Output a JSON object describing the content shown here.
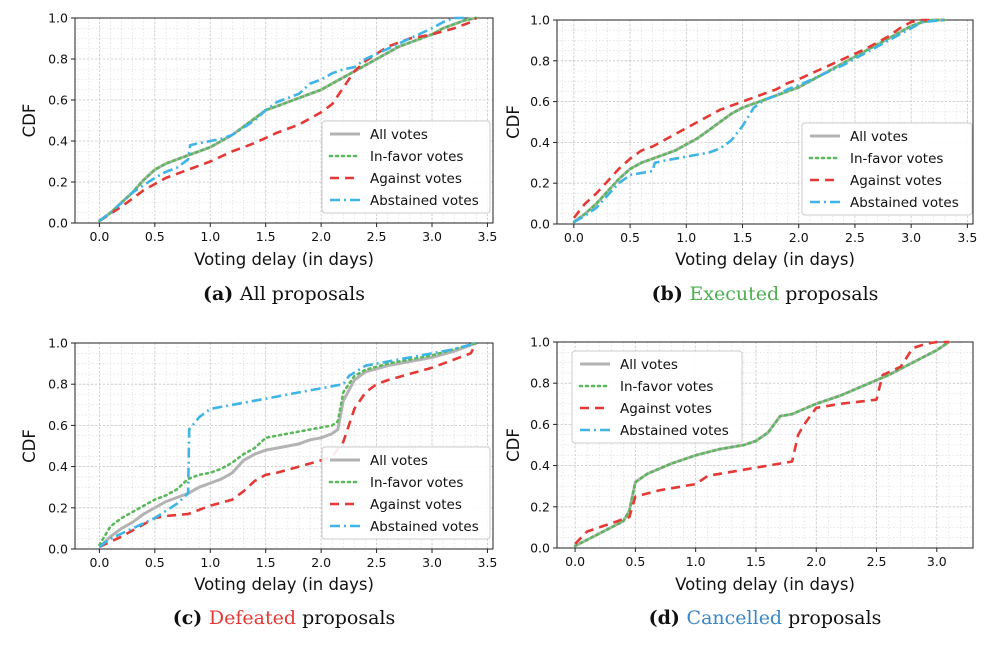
{
  "colors": {
    "all": "#b3b3b3",
    "in_favor": "#5cb85c",
    "against": "#e53935",
    "abstained": "#3fb4e6",
    "executed_word": "#4caf50",
    "defeated_word": "#e53935",
    "cancelled_word": "#3a87c8"
  },
  "chart_data": [
    {
      "type": "line",
      "panel": "a",
      "caption": {
        "label": "(a)",
        "text": "All proposals"
      },
      "xlabel": "Voting delay (in days)",
      "ylabel": "CDF",
      "xlim": [
        -0.22,
        3.55
      ],
      "ylim": [
        0,
        1.0
      ],
      "xticks": [
        "0.0",
        "0.5",
        "1.0",
        "1.5",
        "2.0",
        "2.5",
        "3.0",
        "3.5"
      ],
      "yticks": [
        "0.0",
        "0.2",
        "0.4",
        "0.6",
        "0.8",
        "1.0"
      ],
      "legend_position": "lower-right",
      "series": [
        {
          "name": "All votes",
          "key": "all",
          "x": [
            0.0,
            0.1,
            0.2,
            0.3,
            0.4,
            0.5,
            0.6,
            0.7,
            0.8,
            0.9,
            1.0,
            1.1,
            1.2,
            1.3,
            1.4,
            1.5,
            1.6,
            1.7,
            1.8,
            1.9,
            2.0,
            2.1,
            2.2,
            2.3,
            2.4,
            2.5,
            2.6,
            2.7,
            2.8,
            2.9,
            3.0,
            3.1,
            3.2,
            3.3,
            3.4
          ],
          "y": [
            0.01,
            0.05,
            0.1,
            0.15,
            0.21,
            0.26,
            0.29,
            0.31,
            0.33,
            0.35,
            0.37,
            0.4,
            0.43,
            0.47,
            0.51,
            0.55,
            0.57,
            0.59,
            0.61,
            0.63,
            0.65,
            0.68,
            0.71,
            0.74,
            0.77,
            0.8,
            0.83,
            0.86,
            0.88,
            0.9,
            0.92,
            0.95,
            0.97,
            0.99,
            1.0
          ]
        },
        {
          "name": "In-favor votes",
          "key": "in_favor",
          "x": [
            0.0,
            0.1,
            0.2,
            0.3,
            0.4,
            0.5,
            0.6,
            0.7,
            0.8,
            0.9,
            1.0,
            1.1,
            1.2,
            1.3,
            1.4,
            1.5,
            1.6,
            1.7,
            1.8,
            1.9,
            2.0,
            2.1,
            2.2,
            2.3,
            2.4,
            2.5,
            2.6,
            2.7,
            2.8,
            2.9,
            3.0,
            3.1,
            3.2,
            3.3,
            3.4
          ],
          "y": [
            0.01,
            0.05,
            0.1,
            0.15,
            0.21,
            0.26,
            0.29,
            0.31,
            0.33,
            0.35,
            0.37,
            0.4,
            0.43,
            0.47,
            0.51,
            0.55,
            0.57,
            0.59,
            0.61,
            0.63,
            0.65,
            0.68,
            0.71,
            0.74,
            0.77,
            0.8,
            0.83,
            0.86,
            0.88,
            0.9,
            0.92,
            0.95,
            0.97,
            0.99,
            1.0
          ]
        },
        {
          "name": "Against votes",
          "key": "against",
          "x": [
            0.0,
            0.2,
            0.4,
            0.6,
            0.8,
            1.0,
            1.2,
            1.4,
            1.6,
            1.8,
            2.0,
            2.1,
            2.2,
            2.3,
            2.4,
            2.6,
            2.8,
            3.0,
            3.2,
            3.35,
            3.4
          ],
          "y": [
            0.01,
            0.08,
            0.16,
            0.22,
            0.26,
            0.3,
            0.35,
            0.39,
            0.44,
            0.48,
            0.54,
            0.58,
            0.66,
            0.74,
            0.79,
            0.86,
            0.9,
            0.92,
            0.95,
            0.98,
            1.0
          ]
        },
        {
          "name": "Abstained votes",
          "key": "abstained",
          "x": [
            0.0,
            0.1,
            0.3,
            0.5,
            0.6,
            0.7,
            0.8,
            0.82,
            0.9,
            1.0,
            1.1,
            1.2,
            1.4,
            1.5,
            1.6,
            1.8,
            1.9,
            2.0,
            2.1,
            2.2,
            2.3,
            2.4,
            2.6,
            2.8,
            3.0,
            3.1,
            3.2,
            3.3
          ],
          "y": [
            0.01,
            0.05,
            0.15,
            0.22,
            0.25,
            0.27,
            0.31,
            0.38,
            0.39,
            0.4,
            0.41,
            0.43,
            0.5,
            0.55,
            0.59,
            0.63,
            0.68,
            0.7,
            0.73,
            0.75,
            0.76,
            0.8,
            0.85,
            0.9,
            0.95,
            0.98,
            1.0,
            1.0
          ]
        }
      ]
    },
    {
      "type": "line",
      "panel": "b",
      "caption": {
        "label": "(b)",
        "highlight": "Executed",
        "text": " proposals",
        "highlight_color_key": "executed_word"
      },
      "xlabel": "Voting delay (in days)",
      "ylabel": "CDF",
      "xlim": [
        -0.15,
        3.55
      ],
      "ylim": [
        0,
        1.0
      ],
      "xticks": [
        "0.0",
        "0.5",
        "1.0",
        "1.5",
        "2.0",
        "2.5",
        "3.0",
        "3.5"
      ],
      "yticks": [
        "0.0",
        "0.2",
        "0.4",
        "0.6",
        "0.8",
        "1.0"
      ],
      "legend_position": "lower-right",
      "series": [
        {
          "name": "All votes",
          "key": "all",
          "x": [
            0.0,
            0.1,
            0.2,
            0.3,
            0.4,
            0.5,
            0.6,
            0.7,
            0.8,
            0.9,
            1.0,
            1.1,
            1.2,
            1.3,
            1.4,
            1.5,
            1.6,
            1.7,
            1.8,
            1.9,
            2.0,
            2.1,
            2.2,
            2.3,
            2.4,
            2.5,
            2.6,
            2.7,
            2.8,
            2.9,
            3.0,
            3.1,
            3.2,
            3.3
          ],
          "y": [
            0.01,
            0.05,
            0.1,
            0.16,
            0.22,
            0.27,
            0.3,
            0.32,
            0.34,
            0.36,
            0.39,
            0.42,
            0.46,
            0.5,
            0.54,
            0.57,
            0.59,
            0.61,
            0.63,
            0.65,
            0.67,
            0.7,
            0.73,
            0.76,
            0.79,
            0.82,
            0.85,
            0.88,
            0.91,
            0.94,
            0.97,
            0.99,
            1.0,
            1.0
          ]
        },
        {
          "name": "In-favor votes",
          "key": "in_favor",
          "x": [
            0.0,
            0.1,
            0.2,
            0.3,
            0.4,
            0.5,
            0.6,
            0.7,
            0.8,
            0.9,
            1.0,
            1.1,
            1.2,
            1.3,
            1.4,
            1.5,
            1.6,
            1.7,
            1.8,
            1.9,
            2.0,
            2.1,
            2.2,
            2.3,
            2.4,
            2.5,
            2.6,
            2.7,
            2.8,
            2.9,
            3.0,
            3.1,
            3.2,
            3.3
          ],
          "y": [
            0.01,
            0.05,
            0.1,
            0.16,
            0.22,
            0.27,
            0.3,
            0.32,
            0.34,
            0.36,
            0.39,
            0.42,
            0.46,
            0.5,
            0.54,
            0.57,
            0.59,
            0.61,
            0.63,
            0.65,
            0.67,
            0.7,
            0.73,
            0.76,
            0.79,
            0.82,
            0.85,
            0.88,
            0.91,
            0.94,
            0.97,
            0.99,
            1.0,
            1.0
          ]
        },
        {
          "name": "Against votes",
          "key": "against",
          "x": [
            0.0,
            0.1,
            0.2,
            0.3,
            0.4,
            0.5,
            0.6,
            0.7,
            0.8,
            0.9,
            1.0,
            1.1,
            1.2,
            1.3,
            1.4,
            1.5,
            1.6,
            1.7,
            1.8,
            1.9,
            2.0,
            2.2,
            2.4,
            2.6,
            2.8,
            2.9,
            3.0,
            3.1,
            3.2
          ],
          "y": [
            0.03,
            0.1,
            0.15,
            0.21,
            0.27,
            0.32,
            0.36,
            0.38,
            0.41,
            0.44,
            0.47,
            0.5,
            0.53,
            0.56,
            0.58,
            0.6,
            0.62,
            0.64,
            0.66,
            0.69,
            0.71,
            0.76,
            0.81,
            0.86,
            0.92,
            0.96,
            0.99,
            1.0,
            1.0
          ]
        },
        {
          "name": "Abstained votes",
          "key": "abstained",
          "x": [
            0.0,
            0.1,
            0.2,
            0.3,
            0.4,
            0.5,
            0.6,
            0.7,
            0.72,
            0.8,
            0.9,
            1.0,
            1.1,
            1.2,
            1.3,
            1.4,
            1.5,
            1.6,
            1.7,
            1.8,
            1.9,
            2.0,
            2.2,
            2.4,
            2.6,
            2.8,
            3.0,
            3.1,
            3.3
          ],
          "y": [
            0.01,
            0.04,
            0.08,
            0.14,
            0.2,
            0.24,
            0.25,
            0.26,
            0.3,
            0.31,
            0.32,
            0.33,
            0.34,
            0.35,
            0.37,
            0.41,
            0.48,
            0.57,
            0.61,
            0.63,
            0.66,
            0.68,
            0.73,
            0.78,
            0.84,
            0.9,
            0.96,
            0.99,
            1.0
          ]
        }
      ]
    },
    {
      "type": "line",
      "panel": "c",
      "caption": {
        "label": "(c)",
        "highlight": "Defeated",
        "text": " proposals",
        "highlight_color_key": "defeated_word"
      },
      "xlabel": "Voting delay (in days)",
      "ylabel": "CDF",
      "xlim": [
        -0.22,
        3.55
      ],
      "ylim": [
        0,
        1.0
      ],
      "xticks": [
        "0.0",
        "0.5",
        "1.0",
        "1.5",
        "2.0",
        "2.5",
        "3.0",
        "3.5"
      ],
      "yticks": [
        "0.0",
        "0.2",
        "0.4",
        "0.6",
        "0.8",
        "1.0"
      ],
      "legend_position": "lower-right",
      "series": [
        {
          "name": "All votes",
          "key": "all",
          "x": [
            0.0,
            0.1,
            0.2,
            0.3,
            0.4,
            0.5,
            0.6,
            0.7,
            0.8,
            0.9,
            1.0,
            1.1,
            1.2,
            1.3,
            1.4,
            1.5,
            1.6,
            1.7,
            1.8,
            1.9,
            2.0,
            2.1,
            2.15,
            2.2,
            2.3,
            2.4,
            2.6,
            2.8,
            3.0,
            3.2,
            3.4
          ],
          "y": [
            0.01,
            0.06,
            0.1,
            0.13,
            0.17,
            0.2,
            0.23,
            0.25,
            0.27,
            0.3,
            0.32,
            0.34,
            0.37,
            0.43,
            0.46,
            0.48,
            0.49,
            0.5,
            0.51,
            0.53,
            0.54,
            0.56,
            0.58,
            0.72,
            0.82,
            0.86,
            0.89,
            0.91,
            0.93,
            0.96,
            1.0
          ]
        },
        {
          "name": "In-favor votes",
          "key": "in_favor",
          "x": [
            0.0,
            0.1,
            0.2,
            0.3,
            0.4,
            0.5,
            0.6,
            0.7,
            0.8,
            0.9,
            1.0,
            1.1,
            1.2,
            1.3,
            1.4,
            1.5,
            1.6,
            1.7,
            1.8,
            1.9,
            2.0,
            2.1,
            2.15,
            2.2,
            2.3,
            2.4,
            2.6,
            2.8,
            3.0,
            3.2,
            3.4
          ],
          "y": [
            0.02,
            0.11,
            0.15,
            0.18,
            0.21,
            0.24,
            0.26,
            0.29,
            0.34,
            0.36,
            0.37,
            0.39,
            0.42,
            0.46,
            0.49,
            0.54,
            0.55,
            0.56,
            0.57,
            0.58,
            0.59,
            0.6,
            0.62,
            0.76,
            0.84,
            0.87,
            0.9,
            0.92,
            0.94,
            0.97,
            1.0
          ]
        },
        {
          "name": "Against votes",
          "key": "against",
          "x": [
            0.0,
            0.2,
            0.4,
            0.5,
            0.6,
            0.8,
            1.0,
            1.2,
            1.3,
            1.4,
            1.5,
            1.6,
            1.8,
            2.0,
            2.1,
            2.2,
            2.3,
            2.4,
            2.5,
            2.6,
            2.8,
            3.0,
            3.2,
            3.35,
            3.4
          ],
          "y": [
            0.01,
            0.06,
            0.12,
            0.15,
            0.16,
            0.17,
            0.21,
            0.24,
            0.28,
            0.33,
            0.36,
            0.37,
            0.4,
            0.43,
            0.45,
            0.52,
            0.68,
            0.76,
            0.8,
            0.82,
            0.85,
            0.88,
            0.92,
            0.95,
            1.0
          ]
        },
        {
          "name": "Abstained votes",
          "key": "abstained",
          "x": [
            0.0,
            0.1,
            0.3,
            0.5,
            0.7,
            0.8,
            0.81,
            0.9,
            1.0,
            1.2,
            1.4,
            1.6,
            1.8,
            2.0,
            2.2,
            2.25,
            2.4,
            2.6,
            2.8,
            3.0,
            3.2,
            3.4
          ],
          "y": [
            0.01,
            0.05,
            0.1,
            0.15,
            0.22,
            0.27,
            0.58,
            0.64,
            0.68,
            0.7,
            0.72,
            0.74,
            0.76,
            0.78,
            0.8,
            0.84,
            0.89,
            0.91,
            0.93,
            0.95,
            0.97,
            1.0
          ]
        }
      ]
    },
    {
      "type": "line",
      "panel": "d",
      "caption": {
        "label": "(d)",
        "highlight": "Cancelled",
        "text": " proposals",
        "highlight_color_key": "cancelled_word"
      },
      "xlabel": "Voting delay (in days)",
      "ylabel": "CDF",
      "xlim": [
        -0.15,
        3.3
      ],
      "ylim": [
        0,
        1.0
      ],
      "xticks": [
        "0.0",
        "0.5",
        "1.0",
        "1.5",
        "2.0",
        "2.5",
        "3.0"
      ],
      "yticks": [
        "0.0",
        "0.2",
        "0.4",
        "0.6",
        "0.8",
        "1.0"
      ],
      "legend_position": "upper-left",
      "series": [
        {
          "name": "All votes",
          "key": "all",
          "x": [
            0.0,
            0.1,
            0.2,
            0.3,
            0.4,
            0.45,
            0.5,
            0.6,
            0.8,
            1.0,
            1.2,
            1.4,
            1.5,
            1.6,
            1.7,
            1.8,
            2.0,
            2.2,
            2.4,
            2.6,
            2.8,
            3.0,
            3.1
          ],
          "y": [
            0.01,
            0.04,
            0.07,
            0.1,
            0.13,
            0.18,
            0.32,
            0.36,
            0.41,
            0.45,
            0.48,
            0.5,
            0.52,
            0.56,
            0.64,
            0.65,
            0.7,
            0.74,
            0.79,
            0.84,
            0.9,
            0.96,
            1.0
          ]
        },
        {
          "name": "In-favor votes",
          "key": "in_favor",
          "x": [
            0.0,
            0.1,
            0.2,
            0.3,
            0.4,
            0.45,
            0.5,
            0.6,
            0.8,
            1.0,
            1.2,
            1.4,
            1.5,
            1.6,
            1.7,
            1.8,
            2.0,
            2.2,
            2.4,
            2.6,
            2.8,
            3.0,
            3.1
          ],
          "y": [
            0.01,
            0.04,
            0.07,
            0.1,
            0.13,
            0.18,
            0.32,
            0.36,
            0.41,
            0.45,
            0.48,
            0.5,
            0.52,
            0.56,
            0.64,
            0.65,
            0.7,
            0.74,
            0.79,
            0.84,
            0.9,
            0.96,
            1.0
          ]
        },
        {
          "name": "Against votes",
          "key": "against",
          "x": [
            0.0,
            0.1,
            0.3,
            0.45,
            0.5,
            0.7,
            1.0,
            1.1,
            1.4,
            1.6,
            1.8,
            1.85,
            1.9,
            2.0,
            2.2,
            2.5,
            2.55,
            2.7,
            2.8,
            2.9,
            3.0,
            3.1
          ],
          "y": [
            0.02,
            0.08,
            0.12,
            0.15,
            0.25,
            0.28,
            0.31,
            0.35,
            0.38,
            0.4,
            0.42,
            0.55,
            0.6,
            0.68,
            0.7,
            0.72,
            0.84,
            0.88,
            0.97,
            0.99,
            1.0,
            1.0
          ]
        },
        {
          "name": "Abstained votes",
          "key": "abstained",
          "x": [],
          "y": []
        }
      ]
    }
  ]
}
